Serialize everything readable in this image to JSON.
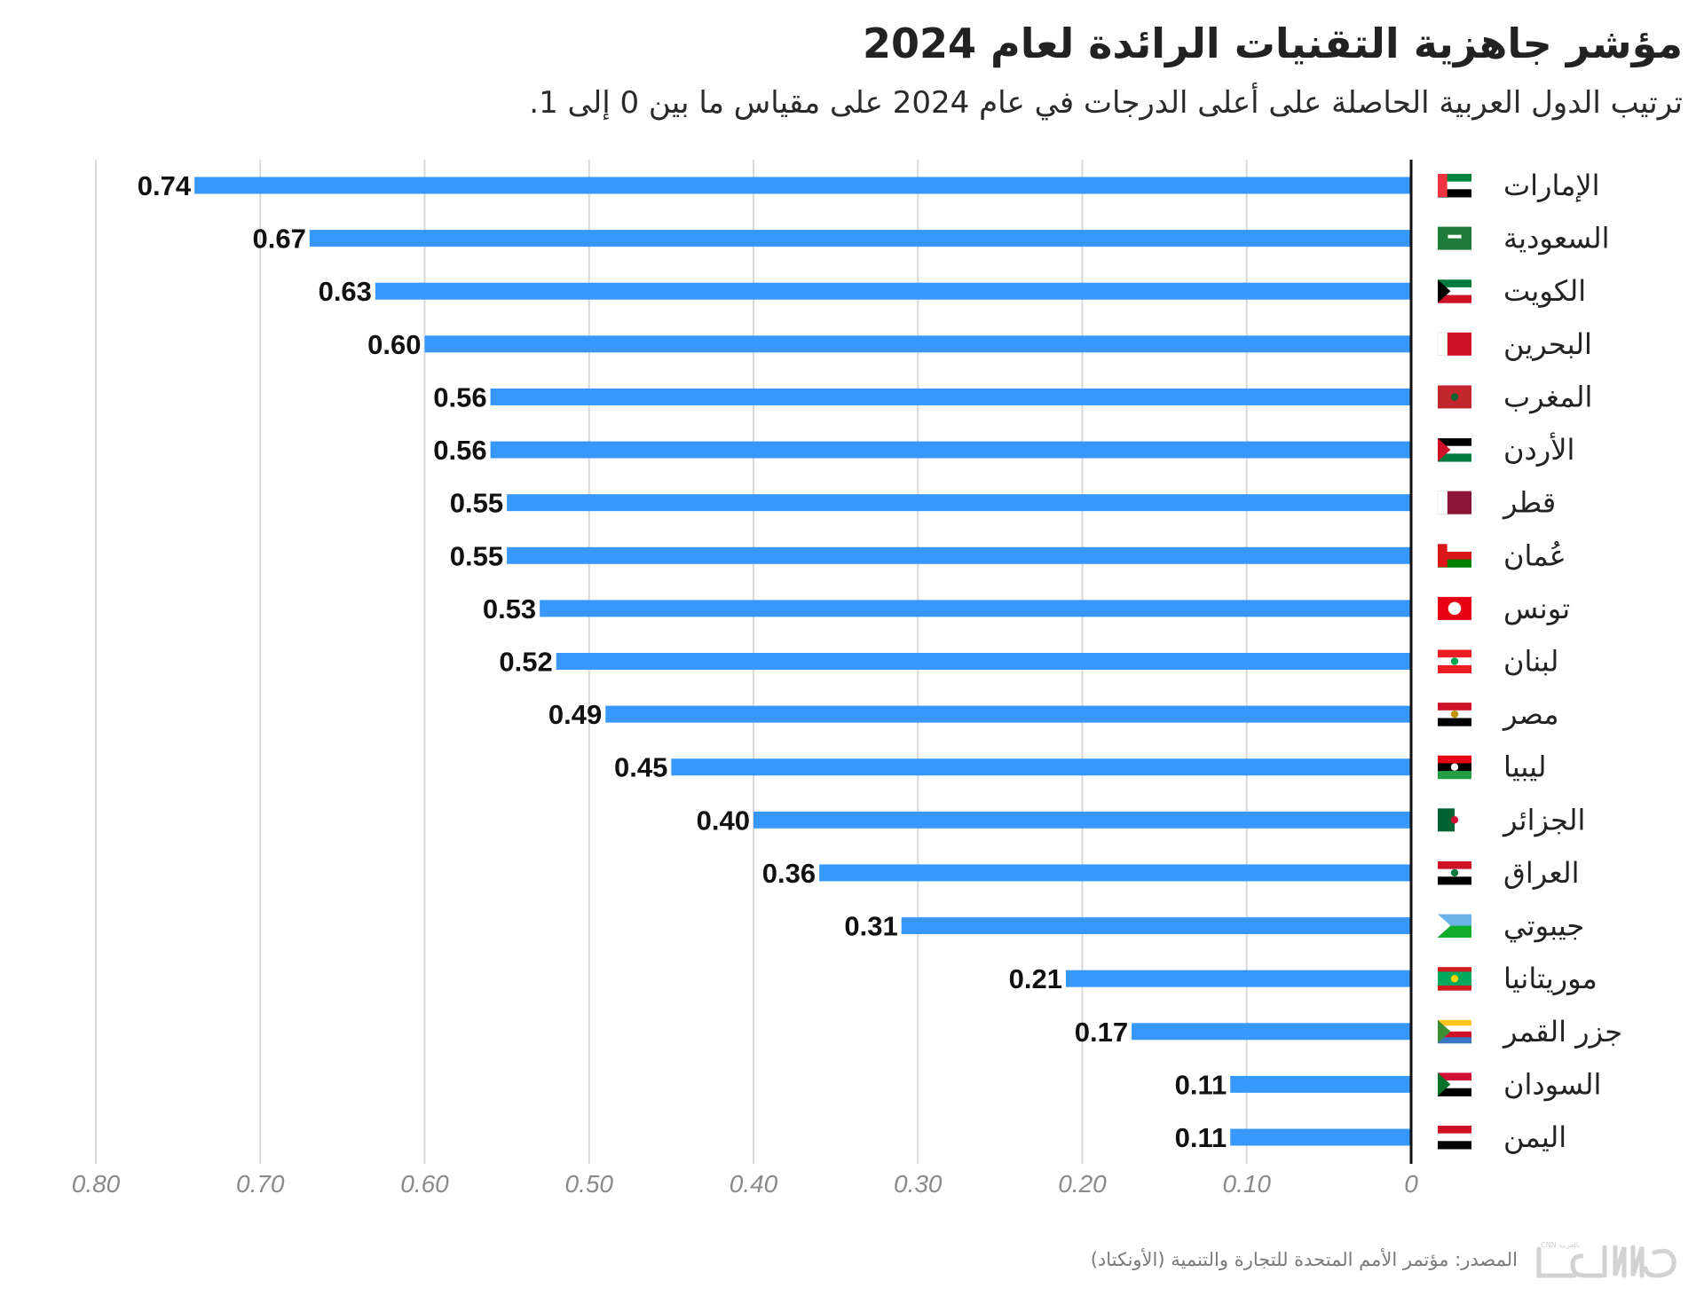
{
  "header": {
    "title": "مؤشر جاهزية التقنيات الرائدة لعام 2024",
    "subtitle": "ترتيب الدول العربية الحاصلة على أعلى الدرجات في عام 2024 على مقياس ما بين 0 إلى 1."
  },
  "footer": {
    "source": "المصدر: مؤتمر الأمم المتحدة للتجارة والتنمية (الأونكتاد)",
    "logo": "CNN بالعربية"
  },
  "colors": {
    "bar": "#3897FB",
    "grid": "#d9d9d9",
    "axis": "#111111",
    "tick_text": "#8a8a8a"
  },
  "chart_data": {
    "type": "bar",
    "orientation": "horizontal",
    "direction": "rtl",
    "title": "مؤشر جاهزية التقنيات الرائدة لعام 2024",
    "subtitle": "ترتيب الدول العربية الحاصلة على أعلى الدرجات في عام 2024 على مقياس ما بين 0 إلى 1.",
    "xlabel": "",
    "ylabel": "",
    "xlim": [
      0,
      0.8
    ],
    "grid": true,
    "ticks": [
      "0",
      "0.10",
      "0.20",
      "0.30",
      "0.40",
      "0.50",
      "0.60",
      "0.70",
      "0.80"
    ],
    "tick_values": [
      0,
      0.1,
      0.2,
      0.3,
      0.4,
      0.5,
      0.6,
      0.7,
      0.8
    ],
    "categories": [
      "الإمارات",
      "السعودية",
      "الكويت",
      "البحرين",
      "المغرب",
      "الأردن",
      "قطر",
      "عُمان",
      "تونس",
      "لبنان",
      "مصر",
      "ليبيا",
      "الجزائر",
      "العراق",
      "جيبوتي",
      "موريتانيا",
      "جزر القمر",
      "السودان",
      "اليمن"
    ],
    "flags": [
      "uae-flag",
      "saudi-flag",
      "kuwait-flag",
      "bahrain-flag",
      "morocco-flag",
      "jordan-flag",
      "qatar-flag",
      "oman-flag",
      "tunisia-flag",
      "lebanon-flag",
      "egypt-flag",
      "libya-flag",
      "algeria-flag",
      "iraq-flag",
      "djibouti-flag",
      "mauritania-flag",
      "comoros-flag",
      "sudan-flag",
      "yemen-flag"
    ],
    "values": [
      0.74,
      0.67,
      0.63,
      0.6,
      0.56,
      0.56,
      0.55,
      0.55,
      0.53,
      0.52,
      0.49,
      0.45,
      0.4,
      0.36,
      0.31,
      0.21,
      0.17,
      0.11,
      0.11
    ],
    "value_labels": [
      "0.74",
      "0.67",
      "0.63",
      "0.60",
      "0.56",
      "0.56",
      "0.55",
      "0.55",
      "0.53",
      "0.52",
      "0.49",
      "0.45",
      "0.40",
      "0.36",
      "0.31",
      "0.21",
      "0.17",
      "0.11",
      "0.11"
    ]
  }
}
